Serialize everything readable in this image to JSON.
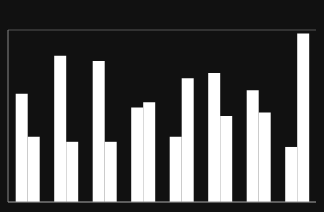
{
  "chart_data": {
    "type": "bar",
    "categories": [
      null,
      null,
      null,
      null,
      null,
      null,
      null,
      null
    ],
    "series": [
      {
        "color": "#ffffff",
        "values": [
          63,
          85,
          82,
          55,
          38,
          75,
          65,
          32
        ]
      },
      {
        "color": "#ffffff",
        "values": [
          38,
          35,
          35,
          58,
          72,
          50,
          52,
          98
        ]
      }
    ],
    "ylim": [
      0,
      100
    ],
    "yticks": [
      0,
      12.5,
      25,
      37.5,
      50,
      62.5,
      75,
      87.5,
      100
    ],
    "grid": true,
    "tick_labels": false
  }
}
